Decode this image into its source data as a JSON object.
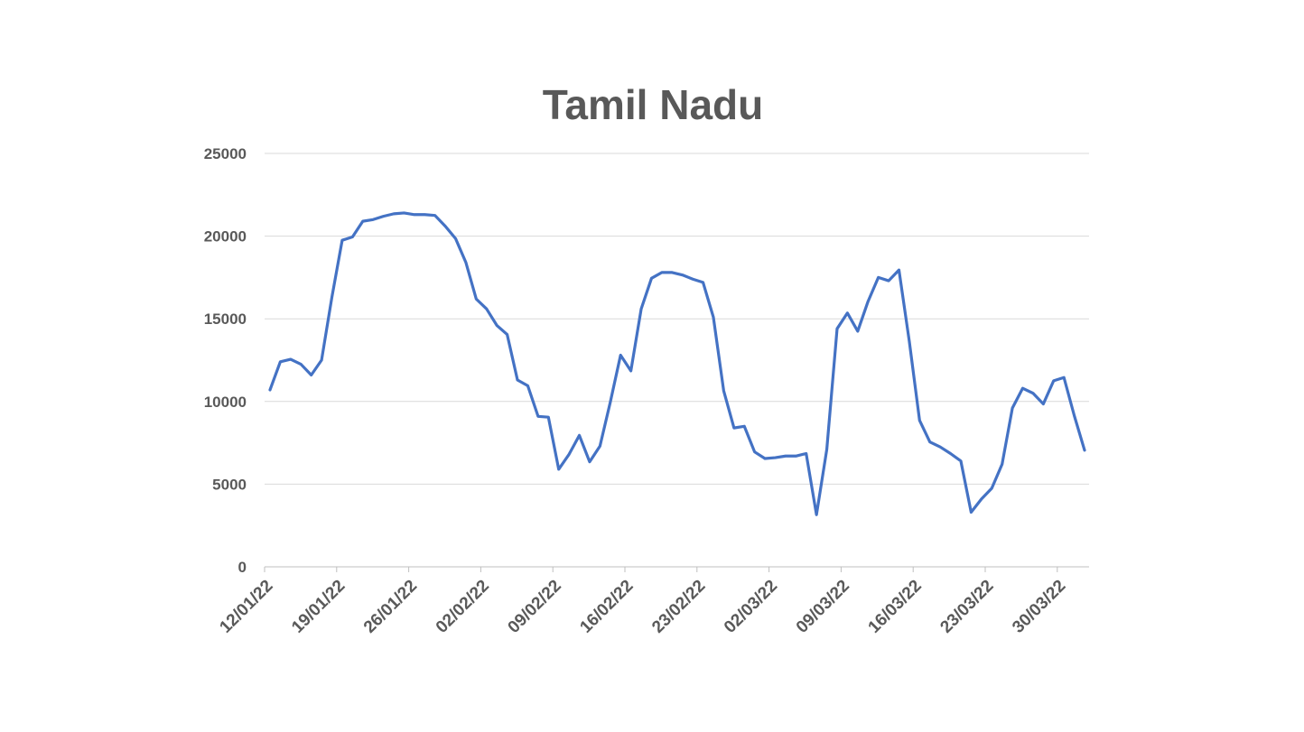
{
  "chart_data": {
    "type": "line",
    "title": "Tamil Nadu",
    "xlabel": "",
    "ylabel": "",
    "ylim": [
      0,
      25000
    ],
    "y_ticks": [
      0,
      5000,
      10000,
      15000,
      20000,
      25000
    ],
    "x_tick_labels": [
      "12/01/22",
      "19/01/22",
      "26/01/22",
      "02/02/22",
      "09/02/22",
      "16/02/22",
      "23/02/22",
      "02/03/22",
      "09/03/22",
      "16/03/22",
      "23/03/22",
      "30/03/22"
    ],
    "x_start": "12/01/22",
    "x_end": "31/03/22",
    "grid": true,
    "legend": "none",
    "series_color": "#4472c4",
    "series": [
      {
        "values": [
          10700,
          12400,
          12550,
          12250,
          11600,
          12500,
          16300,
          19750,
          19950,
          20900,
          21000,
          21200,
          21350,
          21400,
          21300,
          21300,
          21250,
          20600,
          19850,
          18400,
          16200,
          15600,
          14600,
          14050,
          11300,
          10950,
          9100,
          9050,
          5900,
          6800,
          7950,
          6350,
          7300,
          9950,
          12800,
          11850,
          15600,
          17450,
          17800,
          17800,
          17650,
          17400,
          17200,
          15100,
          10650,
          8400,
          8500,
          6950,
          6550,
          6600,
          6700,
          6700,
          6850,
          3150,
          7100,
          14400,
          15350,
          14250,
          16050,
          17500,
          17300,
          17950,
          13650,
          8850,
          7550,
          7250,
          6850,
          6400,
          3300,
          4100,
          4750,
          6200,
          9600,
          10800,
          10500,
          9850,
          11250,
          11450,
          9150,
          7050
        ]
      }
    ]
  }
}
